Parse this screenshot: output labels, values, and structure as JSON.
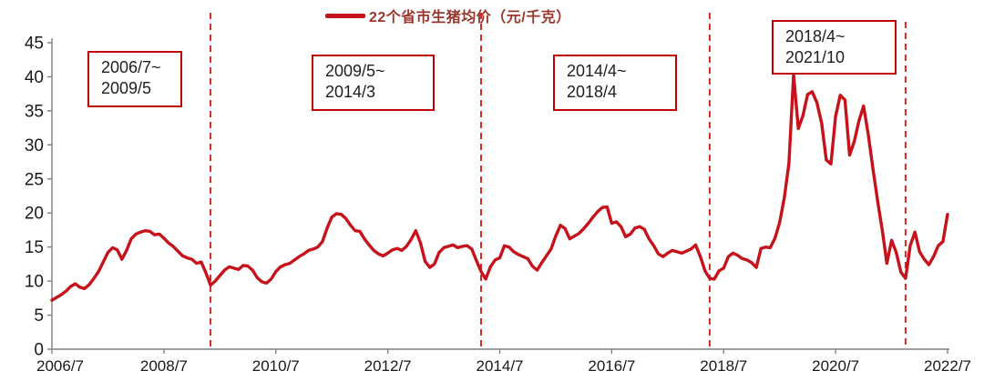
{
  "legend": {
    "label": "22个省市生猪均价（元/千克）",
    "line_color": "#c5121b"
  },
  "chart_data": {
    "type": "line",
    "title": "22个省市生猪均价（元/千克）",
    "unit": "元/千克",
    "x_start": "2006/7",
    "x_end": "2022/7",
    "x_frequency": "monthly",
    "x_tick_labels": [
      "2006/7",
      "2008/7",
      "2010/7",
      "2012/7",
      "2014/7",
      "2016/7",
      "2018/7",
      "2020/7",
      "2022/7"
    ],
    "x_tick_month_indices": [
      0,
      24,
      48,
      72,
      96,
      120,
      144,
      168,
      192
    ],
    "y_ticks": [
      0,
      5,
      10,
      15,
      20,
      25,
      30,
      35,
      40,
      45
    ],
    "ylim": [
      0,
      45
    ],
    "grid": false,
    "legend_position": "top-center",
    "line_color": "#c5121b",
    "dashed_line_color": "#d42a24",
    "annotation_border_color": "#c00000",
    "series": [
      {
        "name": "22个省市生猪均价（元/千克）",
        "color": "#c5121b",
        "values": [
          7.2,
          7.6,
          8.0,
          8.5,
          9.2,
          9.6,
          9.1,
          8.9,
          9.5,
          10.4,
          11.4,
          12.8,
          14.2,
          14.9,
          14.6,
          13.2,
          14.5,
          16.2,
          16.9,
          17.2,
          17.4,
          17.3,
          16.8,
          16.9,
          16.3,
          15.6,
          15.1,
          14.4,
          13.7,
          13.4,
          13.2,
          12.6,
          12.8,
          11.2,
          9.4,
          10.0,
          10.8,
          11.6,
          12.1,
          11.9,
          11.7,
          12.3,
          12.2,
          11.6,
          10.5,
          9.9,
          9.7,
          10.3,
          11.4,
          12.1,
          12.4,
          12.6,
          13.1,
          13.6,
          14.0,
          14.5,
          14.7,
          15.0,
          15.8,
          17.8,
          19.4,
          19.9,
          19.8,
          19.2,
          18.2,
          17.4,
          17.3,
          16.2,
          15.3,
          14.5,
          14.0,
          13.7,
          14.1,
          14.6,
          14.8,
          14.5,
          15.1,
          16.1,
          17.4,
          15.6,
          12.9,
          12.0,
          12.5,
          14.2,
          14.9,
          15.1,
          15.3,
          14.9,
          15.1,
          15.2,
          14.7,
          13.0,
          11.4,
          10.3,
          12.1,
          13.1,
          13.4,
          15.2,
          15.0,
          14.3,
          13.9,
          13.6,
          13.3,
          12.2,
          11.6,
          12.7,
          13.7,
          14.7,
          16.6,
          18.2,
          17.7,
          16.2,
          16.6,
          17.0,
          17.7,
          18.5,
          19.4,
          20.2,
          20.8,
          20.9,
          18.5,
          18.7,
          18.0,
          16.5,
          16.9,
          17.8,
          18.0,
          17.6,
          16.2,
          15.2,
          14.0,
          13.6,
          14.1,
          14.5,
          14.3,
          14.1,
          14.4,
          14.7,
          15.3,
          13.6,
          11.5,
          10.4,
          10.3,
          11.5,
          11.9,
          13.6,
          14.1,
          13.8,
          13.3,
          13.1,
          12.7,
          12.0,
          14.8,
          15.0,
          14.9,
          16.3,
          18.6,
          22.2,
          27.3,
          40.3,
          32.4,
          34.3,
          37.4,
          37.8,
          36.2,
          33.2,
          27.8,
          27.2,
          34.2,
          37.3,
          36.6,
          28.5,
          30.5,
          33.5,
          35.7,
          31.5,
          26.5,
          21.8,
          17.5,
          12.6,
          16.0,
          14.2,
          11.3,
          10.4,
          15.2,
          17.2,
          14.3,
          13.2,
          12.4,
          13.6,
          15.2,
          15.8,
          19.8
        ]
      }
    ],
    "cycle_boundaries": [
      {
        "date": "2009/5",
        "month_index": 34
      },
      {
        "date": "2014/3",
        "month_index": 92
      },
      {
        "date": "2018/4",
        "month_index": 141
      },
      {
        "date": "2021/10",
        "month_index": 183
      }
    ],
    "annotations": [
      {
        "line1": "2006/7~",
        "line2": "2009/5"
      },
      {
        "line1": "2009/5~",
        "line2": "2014/3"
      },
      {
        "line1": "2014/4~",
        "line2": "2018/4"
      },
      {
        "line1": "2018/4~",
        "line2": "2021/10"
      }
    ]
  }
}
